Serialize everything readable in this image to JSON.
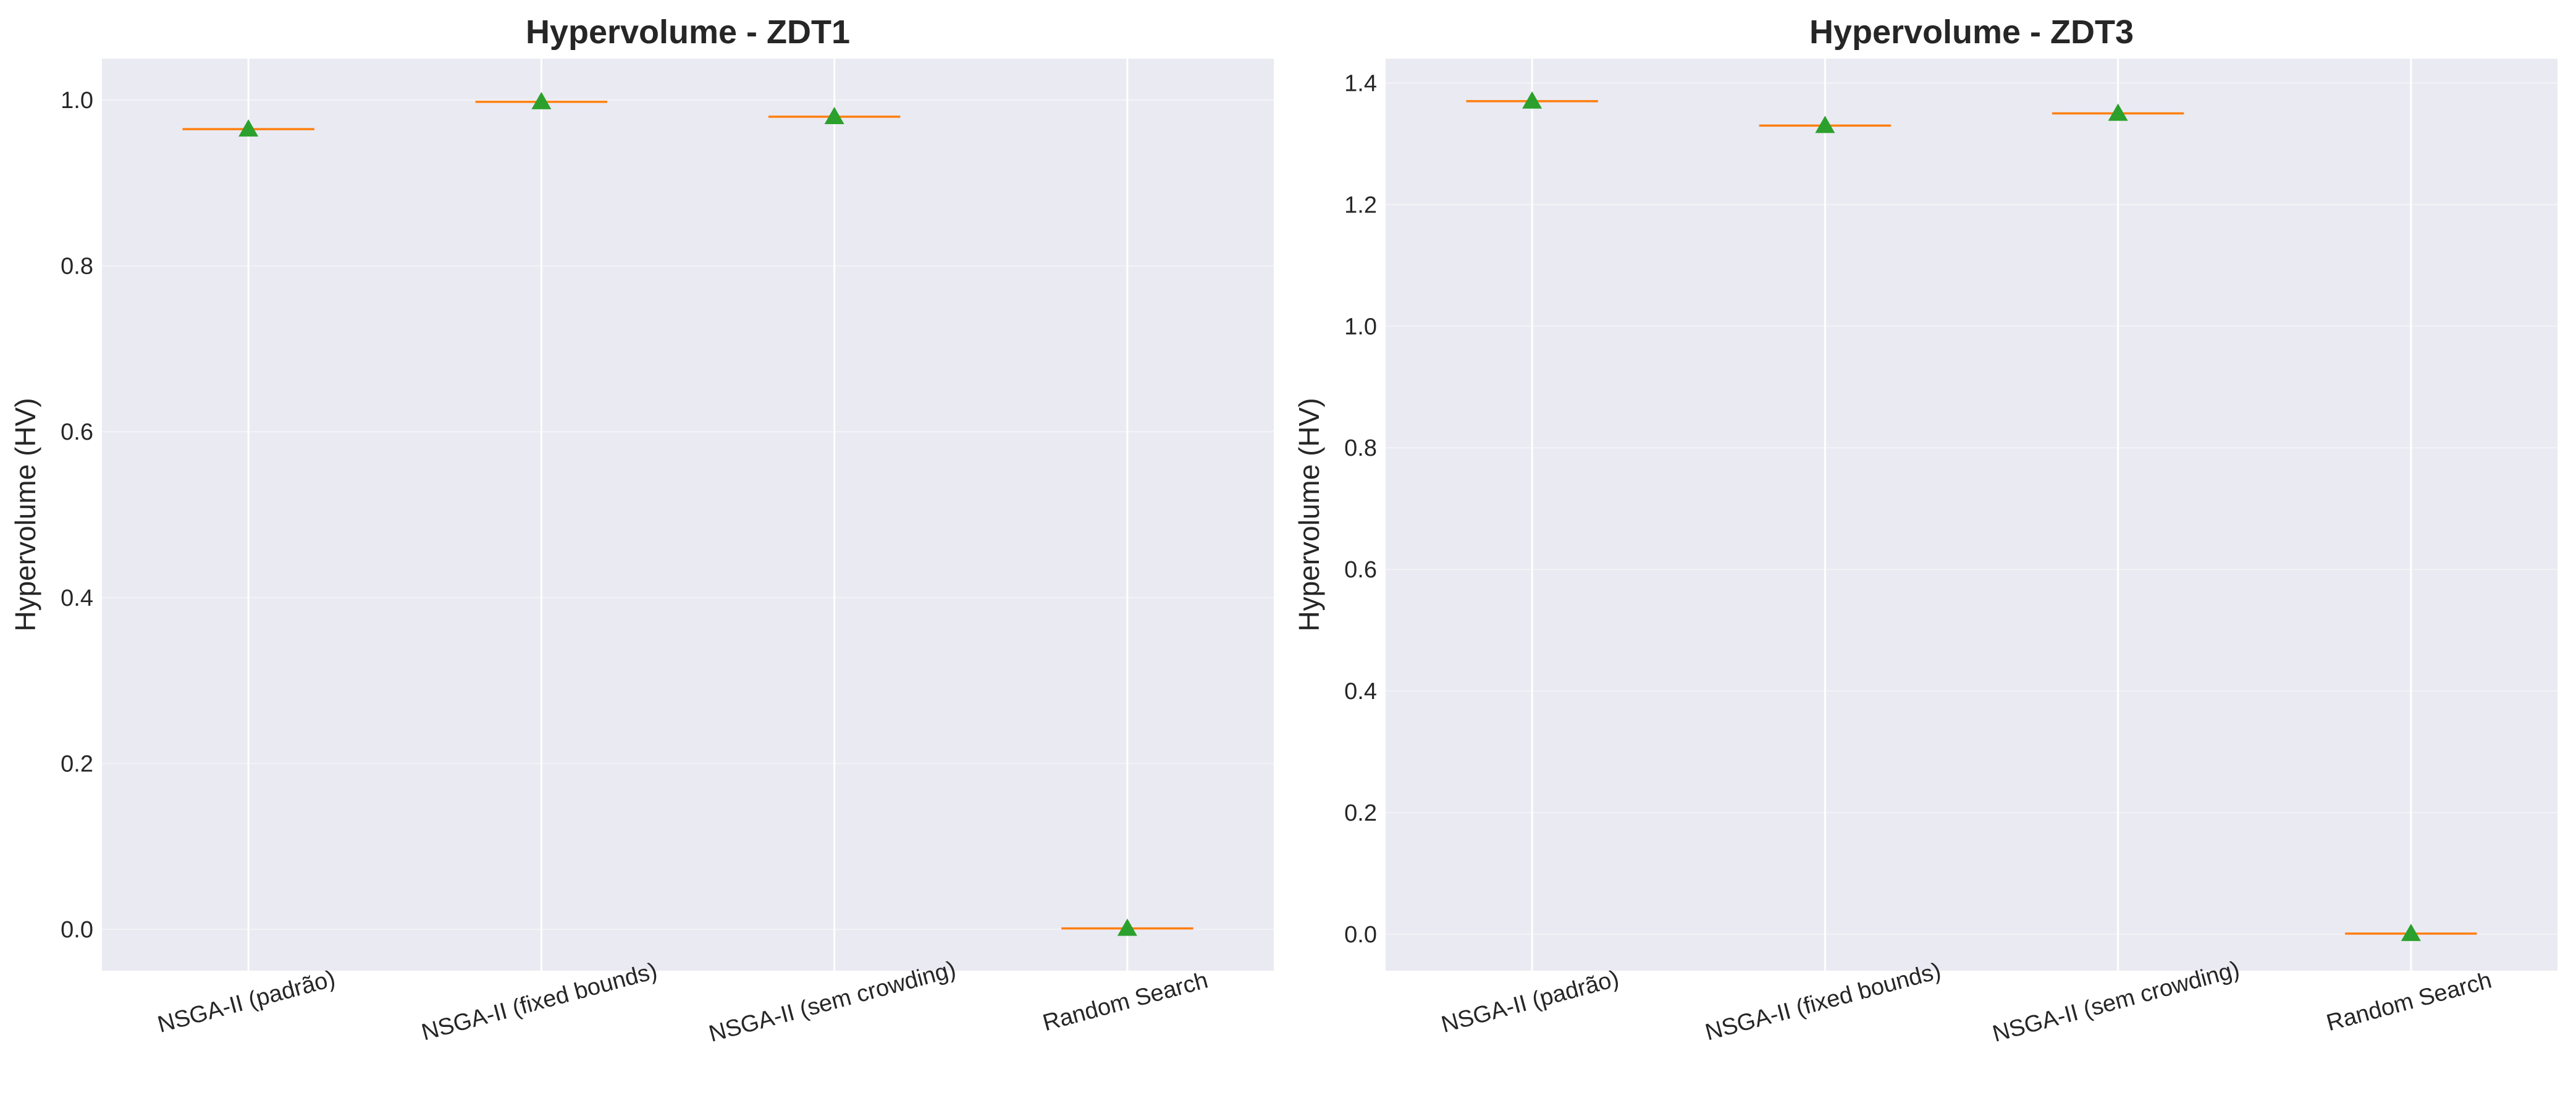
{
  "chart_data": [
    {
      "type": "box",
      "title": "Hypervolume - ZDT1",
      "xlabel": "",
      "ylabel": "Hypervolume (HV)",
      "ylim": [
        -0.05,
        1.05
      ],
      "yticks": [
        "0.0",
        "0.2",
        "0.4",
        "0.6",
        "0.8",
        "1.0"
      ],
      "grid": true,
      "categories": [
        "NSGA-II (padrão)",
        "NSGA-II (fixed bounds)",
        "NSGA-II (sem crowding)",
        "Random Search"
      ],
      "medians": [
        0.965,
        0.998,
        0.98,
        0.001
      ],
      "means": [
        0.965,
        0.998,
        0.98,
        0.001
      ],
      "colors": {
        "median": "#ff7f0e",
        "mean_marker": "#2ca02c"
      }
    },
    {
      "type": "box",
      "title": "Hypervolume - ZDT3",
      "xlabel": "",
      "ylabel": "Hypervolume (HV)",
      "ylim": [
        -0.06,
        1.44
      ],
      "yticks": [
        "0.0",
        "0.2",
        "0.4",
        "0.6",
        "0.8",
        "1.0",
        "1.2",
        "1.4"
      ],
      "grid": true,
      "categories": [
        "NSGA-II (padrão)",
        "NSGA-II (fixed bounds)",
        "NSGA-II (sem crowding)",
        "Random Search"
      ],
      "medians": [
        1.37,
        1.33,
        1.35,
        0.001
      ],
      "means": [
        1.37,
        1.33,
        1.35,
        0.001
      ],
      "colors": {
        "median": "#ff7f0e",
        "mean_marker": "#2ca02c"
      }
    }
  ]
}
